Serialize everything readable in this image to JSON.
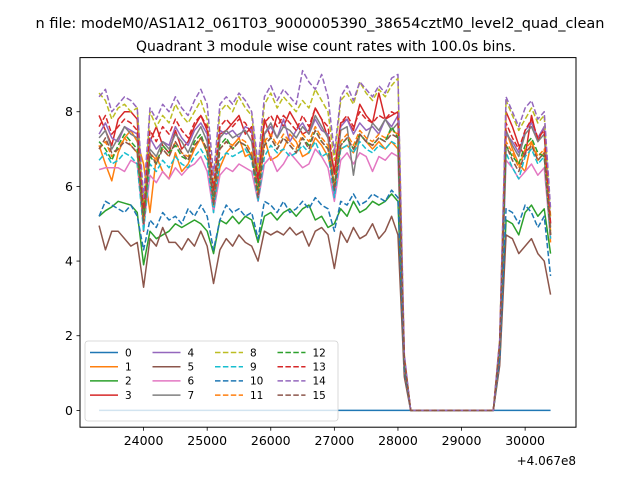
{
  "chart_data": {
    "type": "line",
    "suptitle": "n file: modeM0/AS1A12_061T03_9000005390_38654cztM0_level2_quad_clean",
    "title": "Quadrant 3 module wise count rates with 100.0s bins.",
    "xlabel": "",
    "ylabel": "",
    "offset_text": "+4.067e8",
    "xlim": [
      23000,
      30800
    ],
    "ylim": [
      -0.45,
      9.45
    ],
    "xticks": [
      24000,
      25000,
      26000,
      27000,
      28000,
      29000,
      30000
    ],
    "yticks": [
      0,
      2,
      4,
      6,
      8
    ],
    "x_start": 23300,
    "x_step": 100,
    "legend_loc": "lower-left",
    "legend_ncol": 4,
    "series": [
      {
        "name": "0",
        "color": "#1f77b4",
        "dash": "solid",
        "values": [
          0,
          0,
          0,
          0,
          0,
          0,
          0,
          0,
          0,
          0,
          0,
          0,
          0,
          0,
          0,
          0,
          0,
          0,
          0,
          0,
          0,
          0,
          0,
          0,
          0,
          0,
          0,
          0,
          0,
          0,
          0,
          0,
          0,
          0,
          0,
          0,
          0,
          0,
          0,
          0,
          0,
          0,
          0,
          0,
          0,
          0,
          0,
          0,
          0,
          0,
          0,
          0,
          0,
          0,
          0,
          0,
          0,
          0,
          0,
          0,
          0,
          0,
          0,
          0,
          0,
          0,
          0,
          0,
          0,
          0,
          0,
          0
        ]
      },
      {
        "name": "1",
        "color": "#ff7f0e",
        "dash": "solid",
        "values": [
          7.1,
          6.6,
          6.15,
          6.9,
          7.3,
          7.5,
          7.2,
          6.6,
          5.3,
          6.8,
          6.4,
          6.2,
          6.9,
          6.4,
          6.6,
          7.0,
          7.3,
          6.9,
          5.5,
          6.5,
          6.9,
          7.1,
          7.3,
          6.8,
          6.9,
          6.0,
          7.3,
          6.7,
          6.8,
          7.0,
          7.4,
          7.2,
          6.8,
          6.9,
          7.3,
          7.1,
          6.8,
          6.1,
          7.0,
          7.1,
          6.9,
          7.4,
          7.2,
          7.0,
          7.2,
          7.0,
          7.2,
          7.0,
          1.3,
          0,
          0,
          0,
          0,
          0,
          0,
          0,
          0,
          0,
          0,
          0,
          0,
          0,
          0,
          1.7,
          7.5,
          7.0,
          6.6,
          6.4,
          7.2,
          6.7,
          6.9,
          4.5
        ]
      },
      {
        "name": "2",
        "color": "#2ca02c",
        "dash": "solid",
        "values": [
          5.2,
          5.35,
          5.45,
          5.6,
          5.55,
          5.5,
          5.3,
          3.9,
          4.8,
          4.6,
          4.7,
          4.8,
          5.0,
          4.9,
          5.0,
          5.1,
          5.0,
          4.8,
          4.2,
          5.1,
          5.0,
          5.2,
          5.0,
          5.2,
          5.1,
          4.5,
          5.2,
          5.3,
          5.1,
          5.3,
          5.4,
          5.2,
          5.4,
          5.5,
          5.1,
          5.2,
          4.9,
          5.0,
          5.4,
          5.2,
          5.6,
          5.3,
          5.4,
          5.6,
          5.5,
          5.6,
          5.8,
          5.6,
          1.1,
          0,
          0,
          0,
          0,
          0,
          0,
          0,
          0,
          0,
          0,
          0,
          0,
          0,
          0,
          1.3,
          5.1,
          5.0,
          4.7,
          5.3,
          5.5,
          5.2,
          5.4,
          4.2
        ]
      },
      {
        "name": "3",
        "color": "#d62728",
        "dash": "solid",
        "values": [
          7.9,
          7.5,
          7.1,
          7.8,
          8.0,
          8.0,
          7.8,
          4.8,
          7.2,
          7.6,
          7.1,
          6.9,
          7.5,
          7.0,
          7.2,
          7.6,
          7.9,
          7.5,
          5.6,
          7.4,
          7.5,
          7.7,
          7.9,
          7.4,
          7.6,
          6.2,
          7.8,
          7.3,
          7.9,
          7.6,
          8.0,
          7.7,
          7.4,
          7.5,
          8.1,
          7.8,
          7.3,
          6.4,
          7.7,
          7.8,
          7.5,
          8.2,
          7.9,
          7.7,
          8.5,
          7.8,
          7.9,
          8.0,
          1.4,
          0,
          0,
          0,
          0,
          0,
          0,
          0,
          0,
          0,
          0,
          0,
          0,
          0,
          0,
          1.8,
          8.0,
          7.6,
          7.1,
          6.8,
          7.9,
          7.2,
          7.6,
          4.7
        ]
      },
      {
        "name": "4",
        "color": "#9467bd",
        "dash": "solid",
        "values": [
          7.4,
          7.7,
          7.3,
          7.2,
          7.6,
          7.5,
          7.4,
          5.0,
          7.3,
          7.0,
          7.2,
          7.1,
          7.6,
          7.3,
          7.1,
          7.5,
          7.7,
          7.4,
          5.8,
          7.5,
          7.4,
          7.5,
          7.3,
          7.6,
          7.5,
          5.9,
          7.4,
          7.6,
          7.3,
          7.8,
          7.2,
          7.5,
          7.7,
          7.4,
          7.8,
          7.5,
          7.4,
          5.7,
          7.6,
          7.8,
          7.4,
          7.7,
          7.5,
          7.6,
          7.4,
          7.8,
          7.6,
          7.9,
          1.4,
          0,
          0,
          0,
          0,
          0,
          0,
          0,
          0,
          0,
          0,
          0,
          0,
          0,
          0,
          1.7,
          7.4,
          7.2,
          6.9,
          7.5,
          7.7,
          7.3,
          7.6,
          5.0
        ]
      },
      {
        "name": "5",
        "color": "#8c564b",
        "dash": "solid",
        "values": [
          4.95,
          4.3,
          4.8,
          4.8,
          4.6,
          4.4,
          4.5,
          3.3,
          4.6,
          4.4,
          4.9,
          4.5,
          4.5,
          4.3,
          4.6,
          4.4,
          4.8,
          4.4,
          3.4,
          4.3,
          4.6,
          4.4,
          4.7,
          4.5,
          4.4,
          4.0,
          4.8,
          4.7,
          4.8,
          4.7,
          4.9,
          4.7,
          4.8,
          4.4,
          4.8,
          4.9,
          4.7,
          3.8,
          4.8,
          4.5,
          4.9,
          4.6,
          4.7,
          5.0,
          4.6,
          4.8,
          5.2,
          4.7,
          0.9,
          0,
          0,
          0,
          0,
          0,
          0,
          0,
          0,
          0,
          0,
          0,
          0,
          0,
          0,
          1.2,
          4.7,
          4.6,
          4.2,
          4.4,
          4.6,
          4.2,
          4.0,
          3.1
        ]
      },
      {
        "name": "6",
        "color": "#e377c2",
        "dash": "solid",
        "values": [
          6.45,
          6.5,
          6.5,
          6.5,
          6.4,
          6.7,
          6.6,
          4.9,
          6.3,
          6.1,
          6.4,
          6.2,
          6.5,
          6.3,
          6.5,
          6.6,
          6.8,
          6.4,
          5.3,
          6.3,
          6.5,
          6.4,
          6.6,
          6.5,
          6.4,
          5.6,
          6.6,
          6.8,
          6.4,
          6.6,
          6.9,
          6.7,
          6.5,
          6.6,
          7.0,
          6.8,
          6.5,
          5.6,
          6.7,
          6.9,
          6.6,
          6.9,
          6.8,
          6.4,
          6.8,
          6.7,
          6.9,
          6.8,
          1.2,
          0,
          0,
          0,
          0,
          0,
          0,
          0,
          0,
          0,
          0,
          0,
          0,
          0,
          0,
          1.5,
          6.7,
          6.5,
          6.2,
          6.4,
          6.6,
          6.3,
          6.5,
          4.6
        ]
      },
      {
        "name": "7",
        "color": "#7f7f7f",
        "dash": "solid",
        "values": [
          7.3,
          7.5,
          7.0,
          7.3,
          7.6,
          7.4,
          7.3,
          5.1,
          7.0,
          6.8,
          7.2,
          7.0,
          7.4,
          7.2,
          6.9,
          7.3,
          7.6,
          7.2,
          5.7,
          7.3,
          7.5,
          7.3,
          7.4,
          7.5,
          7.2,
          5.9,
          7.4,
          7.7,
          7.3,
          7.6,
          7.5,
          7.3,
          7.6,
          7.4,
          7.9,
          7.6,
          7.3,
          6.0,
          7.5,
          7.6,
          6.3,
          7.4,
          7.2,
          7.7,
          7.5,
          7.8,
          7.5,
          7.7,
          1.4,
          0,
          0,
          0,
          0,
          0,
          0,
          0,
          0,
          0,
          0,
          0,
          0,
          0,
          0,
          1.6,
          7.5,
          7.1,
          6.8,
          7.4,
          7.6,
          7.2,
          7.4,
          4.9
        ]
      },
      {
        "name": "8",
        "color": "#bcbd22",
        "dash": "dashed",
        "values": [
          8.5,
          8.3,
          7.8,
          8.1,
          8.2,
          8.0,
          8.1,
          5.3,
          8.0,
          7.6,
          7.9,
          7.7,
          8.2,
          7.9,
          7.7,
          8.0,
          8.3,
          7.8,
          6.0,
          8.0,
          8.2,
          8.0,
          8.4,
          8.1,
          7.9,
          6.4,
          8.2,
          8.5,
          8.1,
          8.4,
          8.2,
          8.0,
          8.3,
          8.1,
          8.6,
          8.3,
          8.0,
          6.7,
          8.3,
          8.5,
          8.2,
          8.8,
          8.5,
          8.3,
          8.6,
          8.4,
          8.7,
          8.9,
          1.5,
          0,
          0,
          0,
          0,
          0,
          0,
          0,
          0,
          0,
          0,
          0,
          0,
          0,
          0,
          1.9,
          8.3,
          7.9,
          7.5,
          7.8,
          8.1,
          7.7,
          7.9,
          5.2
        ]
      },
      {
        "name": "9",
        "color": "#17becf",
        "dash": "dashed",
        "values": [
          6.7,
          6.9,
          6.6,
          6.7,
          6.9,
          6.8,
          6.6,
          4.8,
          6.6,
          6.4,
          6.7,
          6.5,
          6.8,
          6.6,
          6.5,
          6.8,
          7.0,
          6.7,
          5.3,
          6.7,
          6.9,
          6.8,
          6.9,
          7.0,
          6.7,
          5.6,
          6.8,
          7.1,
          6.9,
          7.0,
          6.8,
          6.9,
          7.1,
          6.9,
          7.2,
          6.8,
          6.9,
          5.7,
          7.0,
          7.1,
          6.9,
          7.2,
          7.0,
          6.9,
          7.1,
          7.0,
          7.2,
          7.1,
          1.3,
          0,
          0,
          0,
          0,
          0,
          0,
          0,
          0,
          0,
          0,
          0,
          0,
          0,
          0,
          1.6,
          6.9,
          6.5,
          6.2,
          6.8,
          7.0,
          6.6,
          6.8,
          4.6
        ]
      },
      {
        "name": "10",
        "color": "#1f77b4",
        "dash": "dashed",
        "values": [
          5.2,
          5.6,
          5.5,
          5.4,
          5.3,
          5.5,
          5.2,
          4.3,
          5.1,
          4.9,
          5.3,
          5.1,
          5.2,
          5.0,
          5.4,
          5.2,
          5.5,
          5.2,
          4.3,
          5.1,
          5.5,
          5.3,
          5.4,
          5.2,
          5.3,
          4.6,
          5.6,
          5.5,
          5.3,
          5.6,
          5.3,
          5.4,
          5.6,
          5.4,
          5.7,
          5.5,
          5.4,
          4.8,
          5.6,
          5.5,
          5.8,
          5.5,
          5.6,
          5.8,
          5.7,
          5.6,
          5.9,
          5.7,
          1.1,
          0,
          0,
          0,
          0,
          0,
          0,
          0,
          0,
          0,
          0,
          0,
          0,
          0,
          0,
          1.4,
          5.4,
          5.3,
          5.0,
          5.5,
          5.3,
          4.9,
          5.2,
          3.6
        ]
      },
      {
        "name": "11",
        "color": "#ff7f0e",
        "dash": "dashed",
        "values": [
          7.0,
          7.2,
          6.8,
          7.0,
          7.3,
          7.1,
          6.9,
          5.0,
          6.9,
          6.7,
          7.0,
          6.8,
          7.2,
          6.9,
          6.8,
          7.1,
          7.3,
          7.0,
          5.5,
          7.0,
          7.2,
          7.1,
          7.3,
          7.2,
          6.9,
          5.8,
          7.2,
          7.4,
          7.1,
          7.4,
          7.2,
          7.0,
          7.4,
          7.2,
          7.6,
          7.3,
          7.1,
          6.0,
          7.2,
          7.4,
          7.1,
          7.5,
          7.3,
          7.2,
          7.4,
          7.3,
          7.5,
          7.4,
          1.3,
          0,
          0,
          0,
          0,
          0,
          0,
          0,
          0,
          0,
          0,
          0,
          0,
          0,
          0,
          1.7,
          7.2,
          6.9,
          6.5,
          7.0,
          7.2,
          6.8,
          7.0,
          4.8
        ]
      },
      {
        "name": "12",
        "color": "#2ca02c",
        "dash": "dashed",
        "values": [
          7.2,
          7.0,
          6.7,
          7.1,
          7.4,
          7.2,
          7.0,
          5.2,
          6.8,
          6.6,
          7.1,
          6.9,
          7.1,
          6.8,
          6.7,
          7.2,
          7.4,
          6.9,
          5.6,
          7.1,
          7.3,
          7.0,
          7.2,
          7.1,
          6.8,
          5.9,
          7.1,
          7.3,
          7.0,
          7.3,
          7.1,
          6.9,
          7.3,
          7.1,
          7.5,
          7.2,
          7.0,
          6.0,
          7.1,
          7.3,
          7.0,
          7.4,
          7.2,
          7.1,
          7.3,
          7.2,
          7.6,
          7.3,
          1.3,
          0,
          0,
          0,
          0,
          0,
          0,
          0,
          0,
          0,
          0,
          0,
          0,
          0,
          0,
          1.7,
          7.1,
          6.8,
          6.6,
          7.1,
          7.3,
          6.9,
          6.8,
          4.7
        ]
      },
      {
        "name": "13",
        "color": "#d62728",
        "dash": "dashed",
        "values": [
          7.6,
          7.9,
          7.4,
          7.6,
          7.8,
          7.7,
          7.5,
          5.4,
          7.5,
          7.2,
          7.6,
          7.4,
          7.8,
          7.5,
          7.3,
          7.7,
          7.9,
          7.6,
          5.9,
          7.6,
          7.8,
          7.6,
          7.8,
          7.7,
          7.4,
          6.1,
          7.7,
          7.9,
          7.6,
          7.9,
          7.7,
          7.5,
          7.9,
          7.6,
          8.1,
          7.8,
          7.6,
          6.3,
          7.7,
          7.9,
          7.6,
          8.0,
          7.8,
          7.7,
          7.9,
          7.8,
          8.0,
          7.9,
          1.4,
          0,
          0,
          0,
          0,
          0,
          0,
          0,
          0,
          0,
          0,
          0,
          0,
          0,
          0,
          1.8,
          7.7,
          7.3,
          7.0,
          7.5,
          7.8,
          7.3,
          7.5,
          5.0
        ]
      },
      {
        "name": "14",
        "color": "#9467bd",
        "dash": "dashed",
        "values": [
          8.4,
          8.6,
          8.0,
          8.2,
          8.4,
          8.3,
          8.1,
          5.7,
          8.1,
          7.8,
          8.2,
          8.0,
          8.4,
          8.1,
          7.9,
          8.3,
          8.6,
          8.2,
          6.3,
          8.2,
          8.4,
          8.2,
          8.5,
          8.3,
          8.0,
          6.6,
          8.4,
          8.7,
          8.3,
          8.6,
          8.4,
          8.2,
          9.1,
          8.8,
          8.6,
          9.0,
          8.4,
          6.9,
          8.4,
          8.7,
          8.3,
          8.8,
          8.6,
          8.4,
          8.7,
          8.5,
          8.9,
          9.0,
          1.5,
          0,
          0,
          0,
          0,
          0,
          0,
          0,
          0,
          0,
          0,
          0,
          0,
          0,
          0,
          1.9,
          8.4,
          8.0,
          7.6,
          8.1,
          8.3,
          7.8,
          8.0,
          5.4
        ]
      },
      {
        "name": "15",
        "color": "#8c564b",
        "dash": "dashed",
        "values": [
          7.0,
          7.3,
          6.9,
          7.0,
          7.2,
          7.1,
          6.9,
          5.0,
          6.9,
          6.6,
          7.0,
          6.8,
          7.2,
          6.9,
          6.7,
          7.1,
          7.3,
          7.0,
          5.5,
          7.0,
          7.2,
          7.0,
          7.2,
          7.1,
          6.8,
          5.7,
          7.1,
          7.3,
          7.0,
          7.3,
          7.1,
          6.9,
          7.3,
          7.0,
          7.5,
          7.2,
          7.0,
          5.9,
          7.1,
          7.3,
          7.0,
          7.4,
          7.2,
          7.1,
          7.3,
          7.2,
          7.4,
          7.3,
          1.3,
          0,
          0,
          0,
          0,
          0,
          0,
          0,
          0,
          0,
          0,
          0,
          0,
          0,
          0,
          1.7,
          7.1,
          6.7,
          6.4,
          6.9,
          7.1,
          6.7,
          6.9,
          4.7
        ]
      }
    ]
  }
}
